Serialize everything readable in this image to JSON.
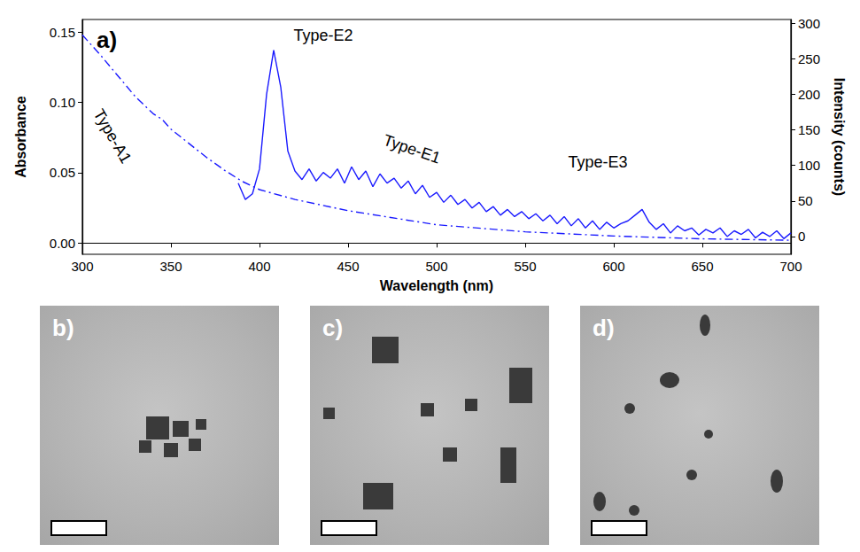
{
  "chart_data": {
    "type": "line",
    "panel_label": "a)",
    "x_label": "Wavelength (nm)",
    "y_label": "Absorbance",
    "y2_label": "Intensity (counts)",
    "xlim": [
      300,
      700
    ],
    "xticks": [
      300,
      350,
      400,
      450,
      500,
      550,
      600,
      650,
      700
    ],
    "ylim": [
      -0.008,
      0.159
    ],
    "yticks": [
      {
        "value": 0,
        "label": "0.00"
      },
      {
        "value": 0.05,
        "label": "0.05"
      },
      {
        "value": 0.1,
        "label": "0.10"
      },
      {
        "value": 0.15,
        "label": "0.15"
      }
    ],
    "y2lim": [
      -25,
      305
    ],
    "y2ticks": [
      0,
      50,
      100,
      150,
      200,
      250,
      300
    ],
    "grid": false,
    "series": [
      {
        "color": "#1a1aff",
        "line_style": "dashdot",
        "axis": "y",
        "x": [
          300,
          310,
          320,
          330,
          340,
          345,
          350,
          360,
          370,
          380,
          390,
          400,
          420,
          450,
          480,
          500,
          550,
          600,
          650,
          700
        ],
        "values": [
          0.148,
          0.134,
          0.119,
          0.104,
          0.092,
          0.088,
          0.081,
          0.071,
          0.061,
          0.052,
          0.044,
          0.038,
          0.031,
          0.023,
          0.017,
          0.013,
          0.008,
          0.005,
          0.003,
          0.002
        ]
      },
      {
        "color": "#1a1aff",
        "line_style": "solid",
        "axis": "y2",
        "x": [
          388,
          392,
          396,
          400,
          404,
          408,
          412,
          416,
          420,
          424,
          428,
          432,
          436,
          440,
          444,
          448,
          452,
          456,
          460,
          464,
          468,
          472,
          476,
          480,
          484,
          488,
          492,
          496,
          500,
          504,
          508,
          512,
          516,
          520,
          524,
          528,
          532,
          536,
          540,
          544,
          548,
          552,
          556,
          560,
          564,
          568,
          572,
          576,
          580,
          584,
          588,
          592,
          596,
          600,
          604,
          608,
          612,
          616,
          620,
          624,
          628,
          632,
          636,
          640,
          644,
          648,
          652,
          656,
          660,
          664,
          668,
          672,
          676,
          680,
          684,
          688,
          692,
          696,
          700
        ],
        "values": [
          75,
          52,
          60,
          95,
          200,
          262,
          210,
          120,
          92,
          80,
          95,
          78,
          90,
          82,
          95,
          75,
          98,
          80,
          92,
          70,
          88,
          75,
          82,
          68,
          78,
          60,
          72,
          55,
          62,
          48,
          58,
          45,
          52,
          40,
          48,
          35,
          42,
          30,
          38,
          28,
          35,
          25,
          32,
          22,
          30,
          18,
          28,
          15,
          25,
          12,
          22,
          10,
          20,
          12,
          18,
          22,
          30,
          38,
          20,
          10,
          18,
          5,
          15,
          8,
          12,
          2,
          10,
          5,
          12,
          0,
          8,
          3,
          10,
          -2,
          6,
          0,
          8,
          -3,
          5
        ]
      }
    ],
    "annotations": [
      {
        "text": "Type-A1",
        "x": 317,
        "y": 0.076,
        "axis": "y"
      },
      {
        "text": "Type-E2",
        "x": 436,
        "y": 283,
        "axis": "y2"
      },
      {
        "text": "Type-E1",
        "x": 486,
        "y": 123,
        "axis": "y2"
      },
      {
        "text": "Type-E3",
        "x": 591,
        "y": 104,
        "axis": "y2"
      }
    ]
  },
  "images": [
    {
      "label": "b)"
    },
    {
      "label": "c)"
    },
    {
      "label": "d)"
    }
  ]
}
